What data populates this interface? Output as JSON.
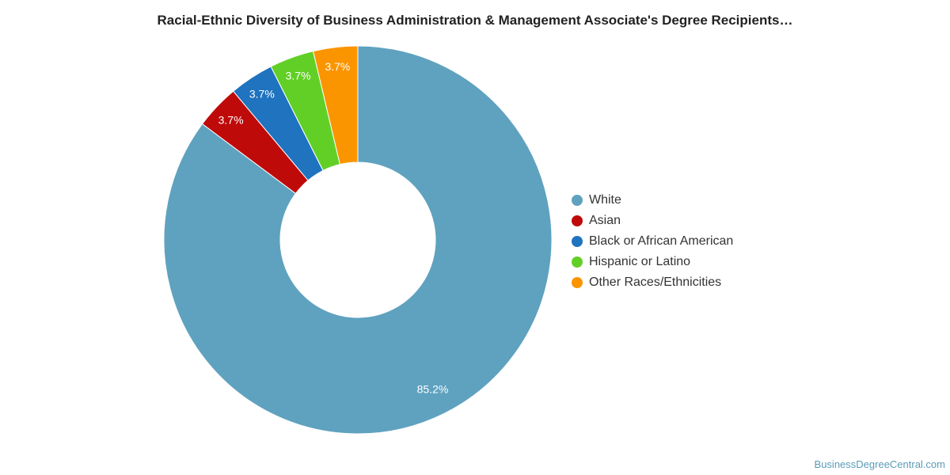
{
  "chart_data": {
    "type": "pie",
    "title": "Racial-Ethnic Diversity of Business Administration & Management Associate's Degree Recipients…",
    "donut": true,
    "legend_position": "right",
    "slices": [
      {
        "name": "White",
        "value": 85.2,
        "label": "85.2%",
        "color": "#5fa2bf"
      },
      {
        "name": "Asian",
        "value": 3.7,
        "label": "3.7%",
        "color": "#bf0a0a"
      },
      {
        "name": "Black or African American",
        "value": 3.7,
        "label": "3.7%",
        "color": "#1f73bf"
      },
      {
        "name": "Hispanic or Latino",
        "value": 3.7,
        "label": "3.7%",
        "color": "#62cf27"
      },
      {
        "name": "Other Races/Ethnicities",
        "value": 3.7,
        "label": "3.7%",
        "color": "#fa9500"
      }
    ]
  },
  "watermark": "BusinessDegreeCentral.com"
}
